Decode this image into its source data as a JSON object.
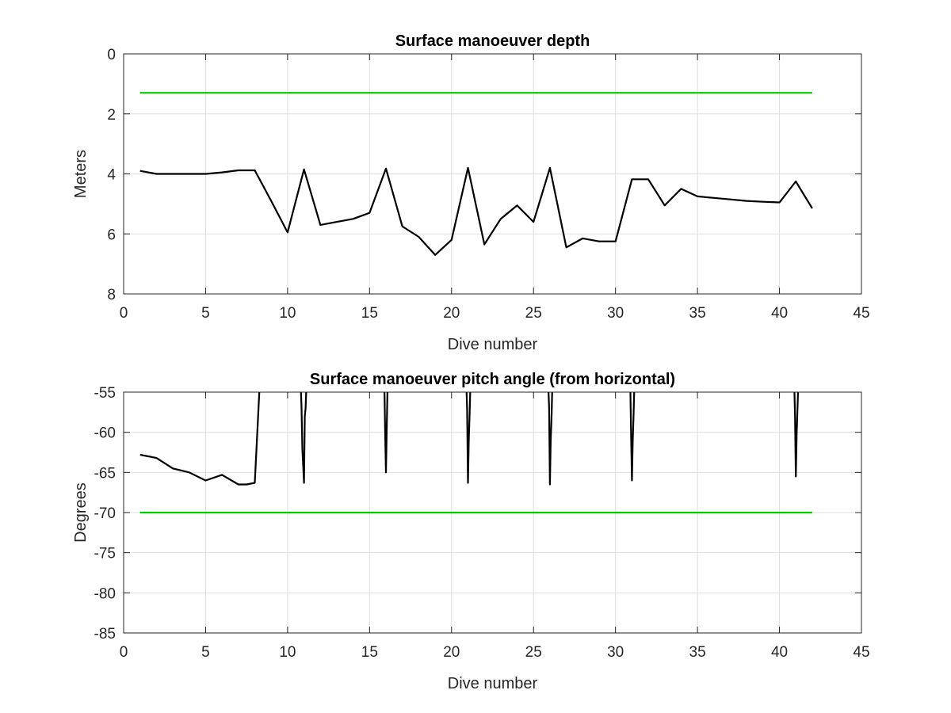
{
  "chart_data": [
    {
      "type": "line",
      "title": "Surface manoeuver depth",
      "xlabel": "Dive number",
      "ylabel": "Meters",
      "xlim": [
        0,
        45
      ],
      "ylim": [
        0,
        8
      ],
      "y_reversed": true,
      "xticks": [
        0,
        5,
        10,
        15,
        20,
        25,
        30,
        35,
        40,
        45
      ],
      "yticks": [
        0,
        2,
        4,
        6,
        8
      ],
      "grid": true,
      "series": [
        {
          "color": "#000000",
          "x": [
            1,
            2,
            3,
            4,
            5,
            6,
            7,
            8,
            9,
            10,
            11,
            12,
            13,
            14,
            15,
            16,
            17,
            18,
            19,
            20,
            21,
            22,
            23,
            24,
            25,
            26,
            27,
            28,
            29,
            30,
            31,
            32,
            33,
            34,
            35,
            36,
            37,
            38,
            39,
            40,
            41,
            42
          ],
          "y": [
            3.9,
            4.0,
            4.0,
            4.0,
            4.0,
            3.95,
            3.88,
            3.88,
            4.9,
            5.95,
            3.85,
            5.7,
            5.6,
            5.5,
            5.3,
            3.82,
            5.75,
            6.1,
            6.7,
            6.2,
            3.8,
            6.35,
            5.5,
            5.05,
            5.6,
            3.8,
            6.45,
            6.15,
            6.25,
            6.25,
            4.18,
            4.18,
            5.05,
            4.5,
            4.75,
            4.8,
            4.85,
            4.9,
            4.93,
            4.95,
            4.25,
            5.15
          ]
        },
        {
          "color": "#00cc00",
          "x": [
            1,
            42
          ],
          "y": [
            1.3,
            1.3
          ]
        }
      ]
    },
    {
      "type": "line",
      "title": "Surface manoeuver pitch angle (from horizontal)",
      "xlabel": "Dive number",
      "ylabel": "Degrees",
      "xlim": [
        0,
        45
      ],
      "ylim": [
        -85,
        -55
      ],
      "xticks": [
        0,
        5,
        10,
        15,
        20,
        25,
        30,
        35,
        40,
        45
      ],
      "yticks": [
        -85,
        -80,
        -75,
        -70,
        -65,
        -60,
        -55
      ],
      "grid": true,
      "series": [
        {
          "color": "#000000",
          "x": [
            1,
            2,
            3,
            4,
            5,
            6,
            7,
            7.5,
            8,
            8.3,
            10.8,
            10.85,
            10.9,
            11,
            11.05,
            11.1,
            11.15,
            15.9,
            15.95,
            16,
            16.05,
            16.1,
            20.9,
            20.95,
            21,
            21.05,
            21.1,
            21.15,
            25.9,
            25.95,
            26,
            26.05,
            26.1,
            26.15,
            30.9,
            30.95,
            31,
            31.05,
            31.1,
            31.15,
            40.9,
            40.95,
            41,
            41.05,
            41.1,
            41.15
          ],
          "y": [
            -62.8,
            -63.2,
            -64.5,
            -65.0,
            -66.0,
            -65.3,
            -66.5,
            -66.5,
            -66.3,
            -54,
            -54,
            -57,
            -62,
            -66.3,
            -58,
            -57,
            -54,
            -54,
            -60,
            -65,
            -59,
            -54,
            -54,
            -57,
            -66.3,
            -61,
            -58,
            -54,
            -54,
            -57,
            -66.5,
            -61,
            -58,
            -54,
            -54,
            -60,
            -66,
            -61,
            -58,
            -54,
            -54,
            -58,
            -65.5,
            -60,
            -57,
            -54
          ]
        },
        {
          "color": "#00cc00",
          "x": [
            1,
            42
          ],
          "y": [
            -70,
            -70
          ]
        }
      ]
    }
  ]
}
